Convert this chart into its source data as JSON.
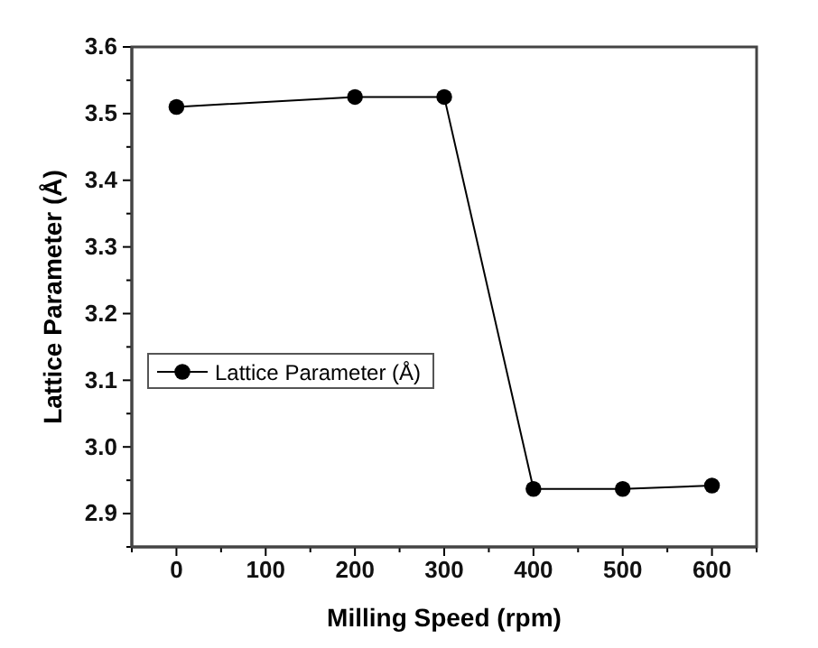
{
  "chart_data": {
    "type": "line",
    "xlabel": "Milling Speed (rpm)",
    "ylabel": "Lattice Parameter (Å)",
    "x": [
      0,
      200,
      300,
      400,
      500,
      600
    ],
    "series": [
      {
        "name": "Lattice Parameter (Å)",
        "color": "#000000",
        "values": [
          3.51,
          3.525,
          3.525,
          2.937,
          2.937,
          2.942
        ]
      }
    ],
    "xlim": [
      -50,
      650
    ],
    "xticks": [
      {
        "value": -50,
        "label": null
      },
      0,
      {
        "value": 50,
        "label": null
      },
      100,
      {
        "value": 150,
        "label": null
      },
      200,
      {
        "value": 250,
        "label": null
      },
      300,
      {
        "value": 350,
        "label": null
      },
      400,
      {
        "value": 450,
        "label": null
      },
      500,
      {
        "value": 550,
        "label": null
      },
      600,
      {
        "value": 650,
        "label": null
      }
    ],
    "ylim": [
      2.85,
      3.6
    ],
    "yticks": [
      {
        "value": 2.85,
        "label": null
      },
      {
        "value": 2.9,
        "label": "2.9"
      },
      {
        "value": 2.95,
        "label": null
      },
      {
        "value": 3.0,
        "label": "3.0"
      },
      {
        "value": 3.05,
        "label": null
      },
      {
        "value": 3.1,
        "label": "3.1"
      },
      {
        "value": 3.15,
        "label": null
      },
      {
        "value": 3.2,
        "label": "3.2"
      },
      {
        "value": 3.25,
        "label": null
      },
      {
        "value": 3.3,
        "label": "3.3"
      },
      {
        "value": 3.35,
        "label": null
      },
      {
        "value": 3.4,
        "label": "3.4"
      },
      {
        "value": 3.45,
        "label": null
      },
      {
        "value": 3.5,
        "label": "3.5"
      },
      {
        "value": 3.55,
        "label": null
      },
      {
        "value": 3.6,
        "label": "3.6"
      }
    ],
    "grid": false,
    "legend": "left",
    "marker": "circle",
    "line_style": "solid"
  }
}
